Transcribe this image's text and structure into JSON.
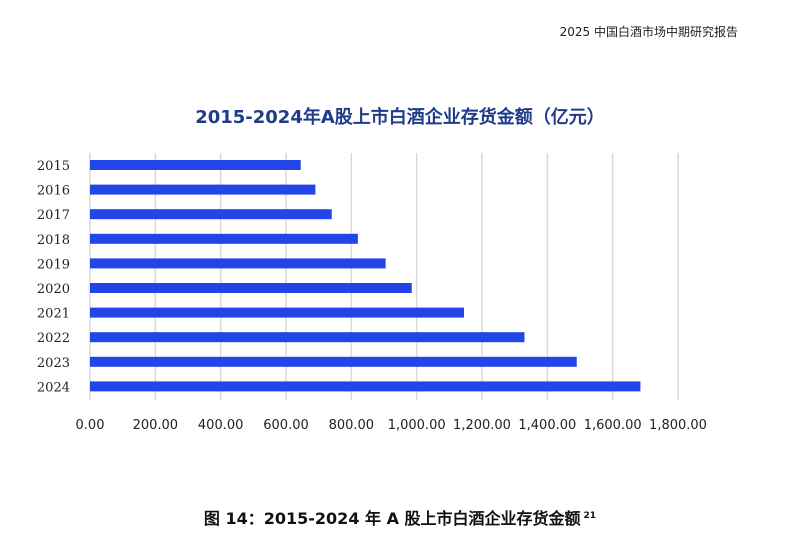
{
  "report_header": "2025 中国白酒市场中期研究报告",
  "caption": {
    "text": "图 14：2015-2024 年 A 股上市白酒企业存货金额",
    "footnote": "21"
  },
  "chart_data": {
    "type": "bar",
    "orientation": "horizontal",
    "title": "2015-2024年A股上市白酒企业存货金额（亿元）",
    "xlabel": "",
    "ylabel": "",
    "categories": [
      "2015",
      "2016",
      "2017",
      "2018",
      "2019",
      "2020",
      "2021",
      "2022",
      "2023",
      "2024"
    ],
    "values": [
      645,
      690,
      740,
      820,
      905,
      985,
      1145,
      1330,
      1490,
      1685
    ],
    "xlim": [
      0,
      1800
    ],
    "xticks": [
      "0.00",
      "200.00",
      "400.00",
      "600.00",
      "800.00",
      "1,000.00",
      "1,200.00",
      "1,400.00",
      "1,600.00",
      "1,800.00"
    ],
    "grid": "vertical",
    "bar_color": "#2145e6",
    "grid_color": "#d9d9d9"
  }
}
